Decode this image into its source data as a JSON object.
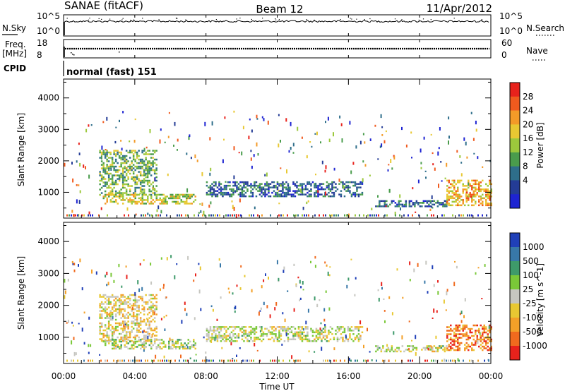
{
  "header": {
    "station": "SANAE (fitACF)",
    "beam": "Beam 12",
    "date": "11/Apr/2012"
  },
  "nsky_panel": {
    "label": "N.Sky",
    "left_ticks": [
      "10^5",
      "10^0"
    ],
    "right_ticks": [
      "10^5",
      "10^0"
    ],
    "right_label": "N.Search"
  },
  "freq_panel": {
    "label_line1": "Freq.",
    "label_line2": "[MHz]",
    "left_ticks": [
      "18",
      "8"
    ],
    "right_ticks": [
      "60",
      "0"
    ],
    "right_label": "Nave"
  },
  "cpid_panel": {
    "label": "CPID",
    "value": "normal (fast) 151"
  },
  "x_axis": {
    "label": "Time UT",
    "ticks": [
      "00:00",
      "04:00",
      "08:00",
      "12:00",
      "16:00",
      "20:00",
      "00:00"
    ]
  },
  "power_colorbar": {
    "label": "Power [dB]",
    "ticks": [
      "28",
      "24",
      "20",
      "16",
      "12",
      "8",
      "4"
    ],
    "colors": [
      "#e8221c",
      "#f05a1e",
      "#f39a28",
      "#e8c832",
      "#9cc83c",
      "#4a9c4c",
      "#2e6e8a",
      "#243c96",
      "#1e24d2"
    ]
  },
  "velocity_colorbar": {
    "label": "Velocity [m s^-1]",
    "ticks": [
      "1000",
      "500",
      "100",
      "25",
      "-25",
      "-100",
      "-500",
      "-1000"
    ],
    "colors": [
      "#2040b8",
      "#3878a8",
      "#3e9a6a",
      "#7ac838",
      "#c6c6c0",
      "#e8c832",
      "#f3a028",
      "#f06a1e",
      "#e8221c"
    ]
  },
  "chart_data": {
    "type": "heatmap",
    "x": {
      "label": "Time UT",
      "range_hours": [
        0,
        24
      ],
      "ticks": [
        "00:00",
        "04:00",
        "08:00",
        "12:00",
        "16:00",
        "20:00",
        "00:00"
      ]
    },
    "y": {
      "label": "Slant Range [km]",
      "range": [
        180,
        4600
      ],
      "ticks": [
        1000,
        2000,
        3000,
        4000
      ]
    },
    "panels": [
      {
        "name": "power",
        "colorbar": "Power [dB]",
        "clim": [
          0,
          32
        ],
        "echo_regions": [
          {
            "t_start": 2.0,
            "t_end": 5.2,
            "range_low": 900,
            "range_high": 2350,
            "value": 14
          },
          {
            "t_start": 2.2,
            "t_end": 7.4,
            "range_low": 650,
            "range_high": 950,
            "value": 18
          },
          {
            "t_start": 8.0,
            "t_end": 16.8,
            "range_low": 900,
            "range_high": 1350,
            "value": 8
          },
          {
            "t_start": 17.5,
            "t_end": 21.5,
            "range_low": 550,
            "range_high": 750,
            "value": 8
          },
          {
            "t_start": 21.5,
            "t_end": 24.0,
            "range_low": 600,
            "range_high": 1400,
            "value": 22
          }
        ]
      },
      {
        "name": "velocity",
        "colorbar": "Velocity [m s^-1]",
        "clim": [
          -1000,
          1000
        ],
        "echo_regions": [
          {
            "t_start": 2.0,
            "t_end": 5.2,
            "range_low": 900,
            "range_high": 2350,
            "value": -150
          },
          {
            "t_start": 2.2,
            "t_end": 7.4,
            "range_low": 650,
            "range_high": 950,
            "value": 80
          },
          {
            "t_start": 8.0,
            "t_end": 16.8,
            "range_low": 900,
            "range_high": 1350,
            "value": 0
          },
          {
            "t_start": 17.5,
            "t_end": 21.5,
            "range_low": 550,
            "range_high": 750,
            "value": 0
          },
          {
            "t_start": 21.5,
            "t_end": 24.0,
            "range_low": 600,
            "range_high": 1400,
            "value": -600
          }
        ]
      }
    ]
  }
}
